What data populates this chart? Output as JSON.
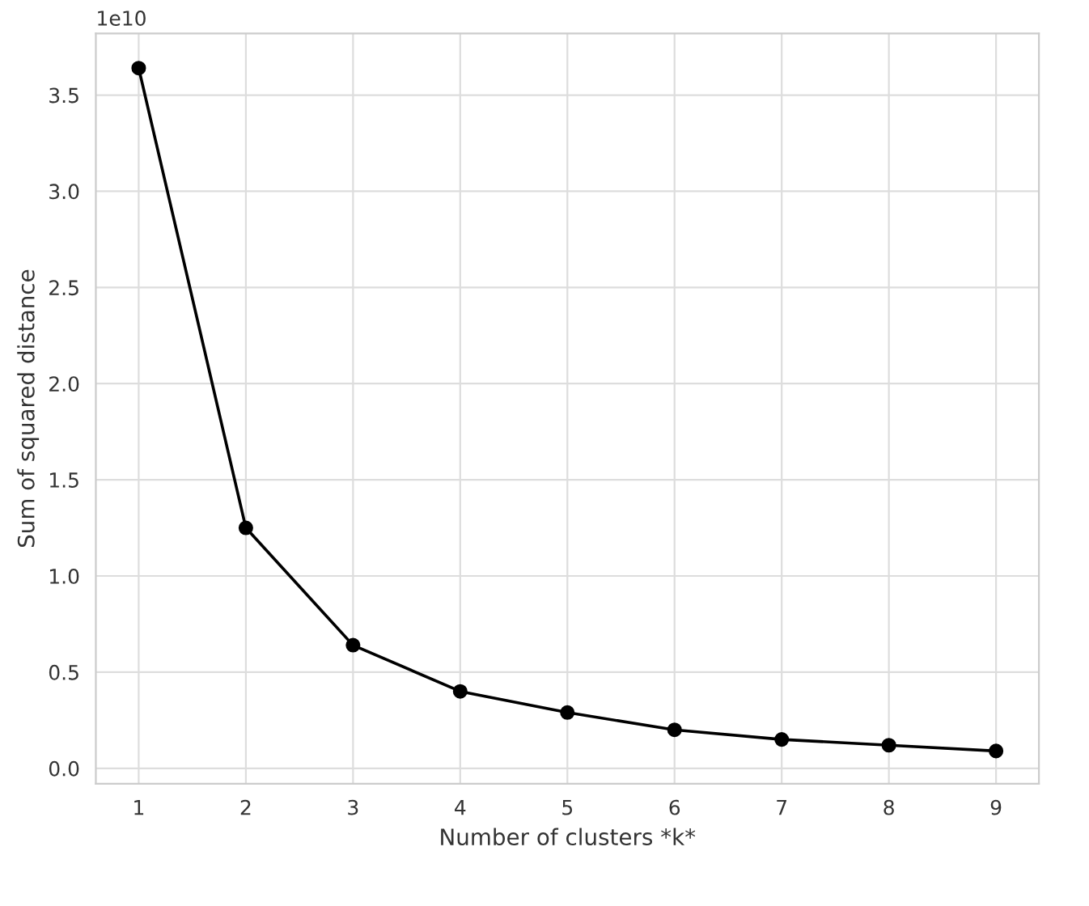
{
  "chart_data": {
    "type": "line",
    "xlabel": "Number of clusters *k*",
    "ylabel": "Sum of squared distance",
    "x": [
      1,
      2,
      3,
      4,
      5,
      6,
      7,
      8,
      9
    ],
    "series": [
      {
        "color": "#000000",
        "values": [
          3.64,
          1.25,
          0.64,
          0.4,
          0.29,
          0.2,
          0.15,
          0.12,
          0.09
        ]
      }
    ],
    "xlim": [
      0.6,
      9.4
    ],
    "xticks": [
      1,
      2,
      3,
      4,
      5,
      6,
      7,
      8,
      9
    ],
    "ylim": [
      -0.08,
      3.82
    ],
    "yticks": [
      {
        "value": 0,
        "label": "0.0"
      },
      0.5,
      {
        "value": 1,
        "label": "1.0"
      },
      1.5,
      {
        "value": 2,
        "label": "2.0"
      },
      2.5,
      {
        "value": 3,
        "label": "3.0"
      },
      3.5
    ],
    "annotations": [
      "1e10"
    ],
    "grid": true,
    "marker": "circle",
    "line_style": "solid",
    "legend": false
  }
}
